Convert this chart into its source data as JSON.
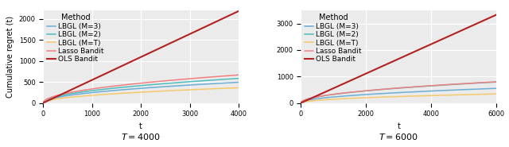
{
  "plots": [
    {
      "T": 4000,
      "label": "T = 4000",
      "xlim": [
        0,
        4000
      ],
      "ylim": [
        0,
        2200
      ],
      "yticks": [
        0,
        500,
        1000,
        1500,
        2000
      ],
      "xticks": [
        0,
        1000,
        2000,
        3000,
        4000
      ],
      "series": {
        "LBGL (M=3)": {
          "color": "#6baed6",
          "shape": "sqrt",
          "scale": 7.75
        },
        "LBGL (M=2)": {
          "color": "#4dbdbd",
          "shape": "sqrt",
          "scale": 9.2
        },
        "LBGL (M=T)": {
          "color": "#f5c96a",
          "shape": "sqrt",
          "scale": 5.7
        },
        "Lasso Bandit": {
          "color": "#f08080",
          "shape": "sqrt",
          "scale": 10.5
        },
        "OLS Bandit": {
          "color": "#b22222",
          "shape": "linear",
          "scale": 0.545
        }
      }
    },
    {
      "T": 6000,
      "label": "T = 6000",
      "xlim": [
        0,
        6000
      ],
      "ylim": [
        0,
        3500
      ],
      "yticks": [
        0,
        1000,
        2000,
        3000
      ],
      "xticks": [
        0,
        2000,
        4000,
        6000
      ],
      "series": {
        "LBGL (M=3)": {
          "color": "#6baed6",
          "shape": "sqrt",
          "scale": 7.1
        },
        "LBGL (M=2)": {
          "color": "#4dbdbd",
          "shape": "sqrt",
          "scale": 10.2
        },
        "LBGL (M=T)": {
          "color": "#f5c96a",
          "shape": "sqrt",
          "scale": 4.39
        },
        "Lasso Bandit": {
          "color": "#f08080",
          "shape": "sqrt",
          "scale": 10.3
        },
        "OLS Bandit": {
          "color": "#b22222",
          "shape": "linear",
          "scale": 0.555
        }
      }
    }
  ],
  "ylabel": "Cumulative regret (t)",
  "xlabel": "t",
  "legend_order": [
    "LBGL (M=3)",
    "LBGL (M=2)",
    "LBGL (M=T)",
    "Lasso Bandit",
    "OLS Bandit"
  ],
  "background_color": "#ebebeb",
  "figure_color": "#ffffff",
  "grid_color": "#ffffff",
  "label_fontsize": 7,
  "tick_fontsize": 6,
  "legend_fontsize": 6.5,
  "legend_title_fontsize": 7
}
